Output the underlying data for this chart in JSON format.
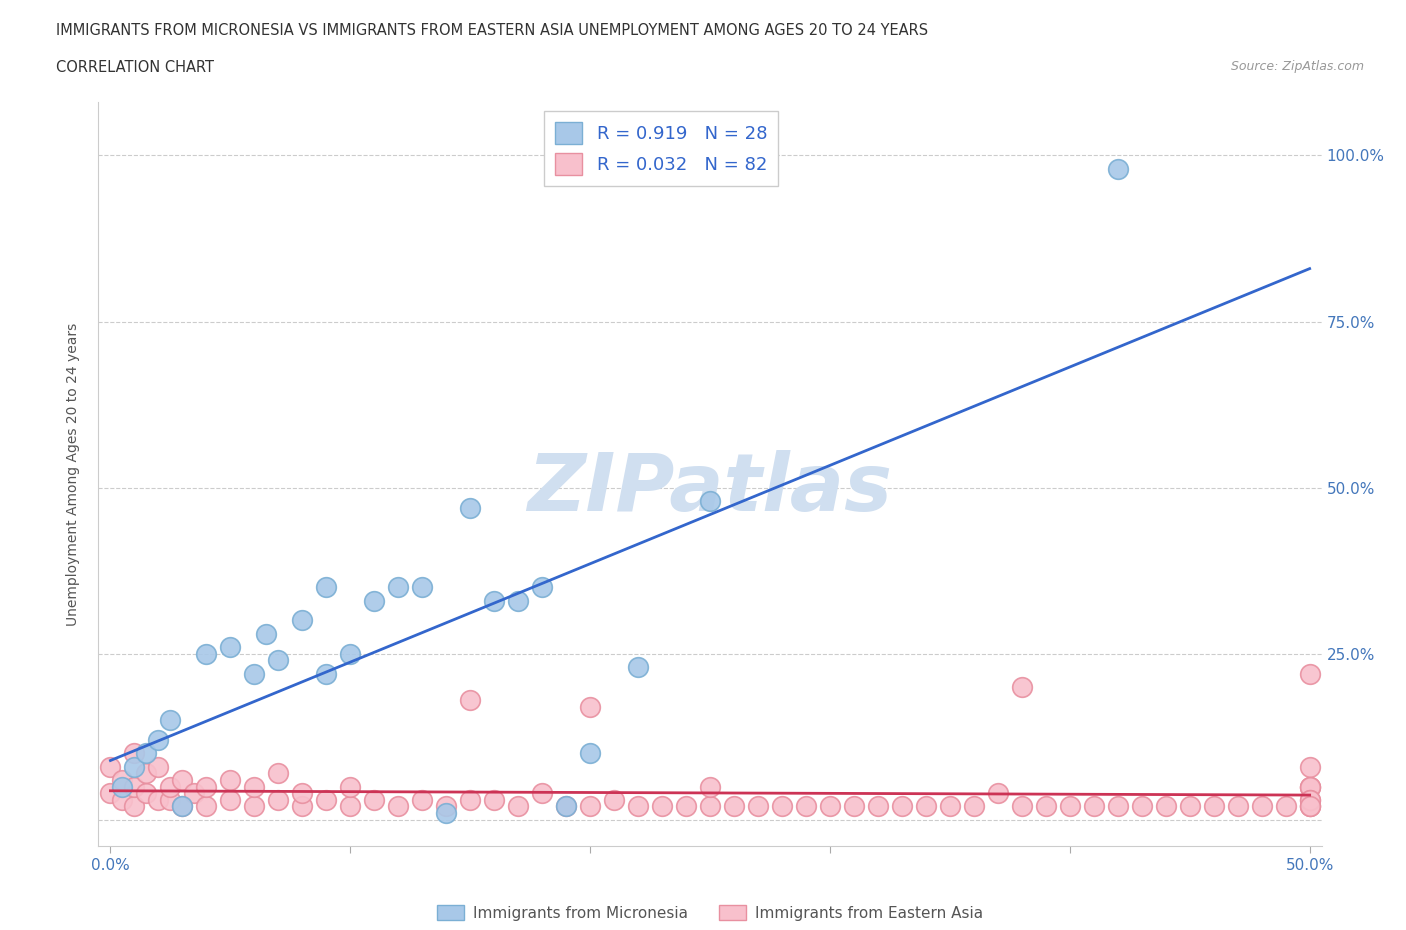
{
  "title_line1": "IMMIGRANTS FROM MICRONESIA VS IMMIGRANTS FROM EASTERN ASIA UNEMPLOYMENT AMONG AGES 20 TO 24 YEARS",
  "title_line2": "CORRELATION CHART",
  "source_text": "Source: ZipAtlas.com",
  "ylabel": "Unemployment Among Ages 20 to 24 years",
  "xlim": [
    -0.005,
    0.505
  ],
  "ylim": [
    -0.04,
    1.08
  ],
  "micronesia_color": "#a8c8e8",
  "micronesia_edge_color": "#7bafd4",
  "eastern_asia_color": "#f8c0cc",
  "eastern_asia_edge_color": "#e890a0",
  "micronesia_line_color": "#3366cc",
  "eastern_asia_line_color": "#cc3355",
  "micronesia_R": 0.919,
  "micronesia_N": 28,
  "eastern_asia_R": 0.032,
  "eastern_asia_N": 82,
  "watermark": "ZIPatlas",
  "watermark_color": "#d0dff0",
  "background_color": "#ffffff",
  "micronesia_x": [
    0.005,
    0.01,
    0.015,
    0.02,
    0.025,
    0.03,
    0.04,
    0.05,
    0.06,
    0.065,
    0.07,
    0.08,
    0.09,
    0.09,
    0.1,
    0.11,
    0.12,
    0.13,
    0.14,
    0.15,
    0.16,
    0.17,
    0.18,
    0.19,
    0.2,
    0.22,
    0.25,
    0.42
  ],
  "micronesia_y": [
    0.05,
    0.08,
    0.1,
    0.12,
    0.15,
    0.02,
    0.25,
    0.26,
    0.22,
    0.28,
    0.24,
    0.3,
    0.35,
    0.22,
    0.25,
    0.33,
    0.35,
    0.35,
    0.01,
    0.47,
    0.33,
    0.33,
    0.35,
    0.02,
    0.1,
    0.23,
    0.48,
    0.98
  ],
  "eastern_asia_x": [
    0.0,
    0.0,
    0.005,
    0.005,
    0.01,
    0.01,
    0.01,
    0.015,
    0.015,
    0.02,
    0.02,
    0.025,
    0.025,
    0.03,
    0.03,
    0.035,
    0.04,
    0.04,
    0.05,
    0.05,
    0.06,
    0.06,
    0.07,
    0.07,
    0.08,
    0.08,
    0.09,
    0.1,
    0.1,
    0.11,
    0.12,
    0.13,
    0.14,
    0.15,
    0.15,
    0.16,
    0.17,
    0.18,
    0.19,
    0.2,
    0.2,
    0.21,
    0.22,
    0.23,
    0.24,
    0.25,
    0.25,
    0.26,
    0.27,
    0.28,
    0.29,
    0.3,
    0.31,
    0.32,
    0.33,
    0.34,
    0.35,
    0.36,
    0.37,
    0.38,
    0.38,
    0.39,
    0.4,
    0.41,
    0.42,
    0.43,
    0.44,
    0.45,
    0.46,
    0.47,
    0.48,
    0.49,
    0.5,
    0.5,
    0.5,
    0.5,
    0.5,
    0.5,
    0.5,
    0.5,
    0.5,
    0.5
  ],
  "eastern_asia_y": [
    0.04,
    0.08,
    0.03,
    0.06,
    0.02,
    0.05,
    0.1,
    0.04,
    0.07,
    0.03,
    0.08,
    0.03,
    0.05,
    0.02,
    0.06,
    0.04,
    0.02,
    0.05,
    0.03,
    0.06,
    0.02,
    0.05,
    0.03,
    0.07,
    0.02,
    0.04,
    0.03,
    0.02,
    0.05,
    0.03,
    0.02,
    0.03,
    0.02,
    0.03,
    0.18,
    0.03,
    0.02,
    0.04,
    0.02,
    0.02,
    0.17,
    0.03,
    0.02,
    0.02,
    0.02,
    0.02,
    0.05,
    0.02,
    0.02,
    0.02,
    0.02,
    0.02,
    0.02,
    0.02,
    0.02,
    0.02,
    0.02,
    0.02,
    0.04,
    0.02,
    0.2,
    0.02,
    0.02,
    0.02,
    0.02,
    0.02,
    0.02,
    0.02,
    0.02,
    0.02,
    0.02,
    0.02,
    0.02,
    0.05,
    0.02,
    0.05,
    0.08,
    0.05,
    0.03,
    0.03,
    0.02,
    0.22
  ]
}
